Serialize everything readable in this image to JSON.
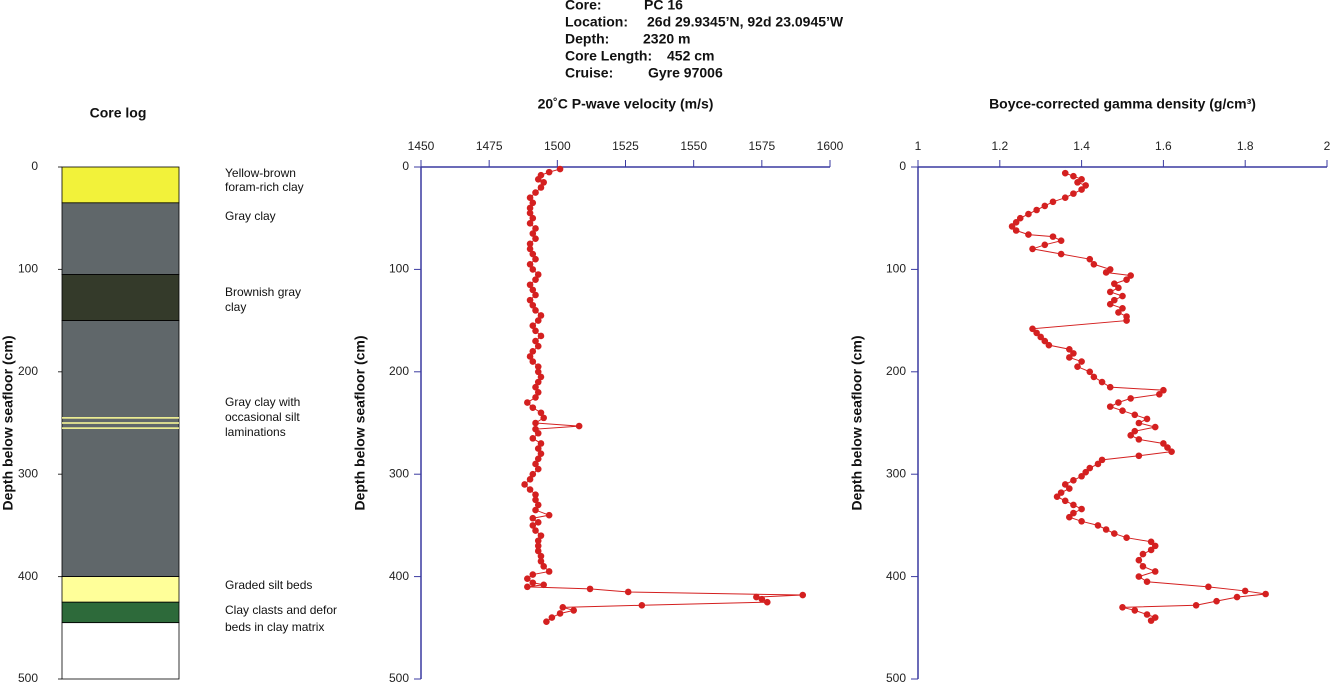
{
  "header": {
    "lines": [
      {
        "label": "Core:",
        "value": "PC 16"
      },
      {
        "label": "Location:",
        "value": "26d 29.9345’N, 92d 23.0945’W"
      },
      {
        "label": "Depth:",
        "value": "2320 m"
      },
      {
        "label": "Core Length:",
        "value": "452 cm"
      },
      {
        "label": "Cruise:",
        "value": "Gyre 97006"
      }
    ]
  },
  "chart_data": [
    {
      "type": "core_log",
      "title": "Core log",
      "ylabel": "Depth below seafloor (cm)",
      "ylim": [
        0,
        500
      ],
      "yticks": [
        0,
        100,
        200,
        300,
        400,
        500
      ],
      "layers": [
        {
          "top": 0,
          "bottom": 35,
          "color": "#f2f23a",
          "label": [
            "Yellow-brown",
            "foram-rich clay"
          ]
        },
        {
          "top": 35,
          "bottom": 105,
          "color": "#60676a",
          "label": [
            "Gray clay"
          ]
        },
        {
          "top": 105,
          "bottom": 150,
          "color": "#343a2a",
          "label": [
            "Brownish gray",
            "clay"
          ]
        },
        {
          "top": 150,
          "bottom": 400,
          "color": "#60676a",
          "label": [
            "Gray clay with",
            "occasional silt",
            "laminations"
          ]
        },
        {
          "top": 400,
          "bottom": 425,
          "color": "#ffff99",
          "label": [
            "Graded  silt beds"
          ]
        },
        {
          "top": 425,
          "bottom": 445,
          "color": "#2d6a3a",
          "label": [
            "Clay clasts and defor",
            "beds in clay matrix"
          ]
        },
        {
          "top": 445,
          "bottom": 500,
          "color": "#ffffff"
        }
      ],
      "laminae": [
        245,
        250,
        255
      ],
      "lamina_color": "#ffff99"
    },
    {
      "type": "line",
      "title": "20˚C P-wave velocity (m/s)",
      "ylabel": "Depth below seafloor (cm)",
      "color": "#d42020",
      "xlim": [
        1450,
        1600
      ],
      "xticks": [
        1450,
        1475,
        1500,
        1525,
        1550,
        1575,
        1600
      ],
      "ylim": [
        0,
        500
      ],
      "yticks": [
        0,
        100,
        200,
        300,
        400,
        500
      ],
      "depth": [
        2,
        5,
        8,
        12,
        15,
        20,
        25,
        30,
        35,
        40,
        45,
        50,
        55,
        60,
        65,
        70,
        75,
        80,
        85,
        90,
        95,
        100,
        105,
        110,
        115,
        120,
        125,
        130,
        135,
        140,
        145,
        150,
        155,
        160,
        165,
        170,
        175,
        180,
        185,
        190,
        195,
        200,
        205,
        210,
        215,
        220,
        225,
        230,
        235,
        240,
        245,
        250,
        253,
        256,
        260,
        265,
        270,
        275,
        280,
        285,
        290,
        295,
        300,
        305,
        310,
        315,
        320,
        325,
        330,
        335,
        340,
        343,
        347,
        350,
        355,
        360,
        365,
        370,
        375,
        380,
        385,
        390,
        395,
        398,
        402,
        406,
        408,
        410,
        412,
        415,
        418,
        420,
        422,
        425,
        428,
        430,
        433,
        436,
        440,
        444
      ],
      "values": [
        1501,
        1497,
        1494,
        1493,
        1495,
        1494,
        1492,
        1490,
        1491,
        1490,
        1490,
        1491,
        1490,
        1492,
        1491,
        1492,
        1490,
        1490,
        1491,
        1492,
        1490,
        1491,
        1493,
        1492,
        1490,
        1491,
        1492,
        1490,
        1491,
        1492,
        1494,
        1493,
        1491,
        1492,
        1494,
        1492,
        1493,
        1491,
        1490,
        1491,
        1493,
        1493,
        1494,
        1493,
        1492,
        1493,
        1492,
        1489,
        1491,
        1494,
        1495,
        1492,
        1508,
        1492,
        1493,
        1491,
        1494,
        1493,
        1494,
        1493,
        1492,
        1493,
        1491,
        1490,
        1488,
        1490,
        1492,
        1492,
        1493,
        1492,
        1497,
        1491,
        1493,
        1491,
        1492,
        1494,
        1493,
        1493,
        1493,
        1494,
        1494,
        1495,
        1497,
        1491,
        1489,
        1491,
        1495,
        1489,
        1512,
        1526,
        1590,
        1573,
        1575,
        1577,
        1531,
        1502,
        1506,
        1501,
        1498,
        1496
      ]
    },
    {
      "type": "line",
      "title": "Boyce-corrected gamma density (g/cm³)",
      "ylabel": "Depth below seafloor (cm)",
      "color": "#d42020",
      "xlim": [
        1,
        2
      ],
      "xticks": [
        1,
        1.2,
        1.4,
        1.6,
        1.8,
        2
      ],
      "ylim": [
        0,
        500
      ],
      "yticks": [
        0,
        100,
        200,
        300,
        400,
        500
      ],
      "depth": [
        6,
        9,
        12,
        15,
        18,
        22,
        26,
        30,
        34,
        38,
        42,
        46,
        50,
        54,
        58,
        62,
        66,
        68,
        72,
        76,
        80,
        85,
        90,
        95,
        100,
        103,
        106,
        110,
        114,
        118,
        122,
        126,
        130,
        134,
        138,
        142,
        146,
        150,
        158,
        162,
        166,
        170,
        174,
        178,
        182,
        186,
        190,
        195,
        200,
        205,
        210,
        215,
        218,
        222,
        226,
        230,
        234,
        238,
        242,
        246,
        250,
        254,
        258,
        262,
        266,
        270,
        274,
        278,
        282,
        286,
        290,
        294,
        298,
        302,
        306,
        310,
        314,
        318,
        322,
        326,
        330,
        334,
        338,
        342,
        346,
        350,
        354,
        358,
        362,
        366,
        370,
        374,
        378,
        384,
        390,
        395,
        400,
        405,
        410,
        414,
        417,
        420,
        424,
        428,
        430,
        433,
        437,
        440,
        443
      ],
      "values": [
        1.36,
        1.38,
        1.4,
        1.39,
        1.41,
        1.4,
        1.38,
        1.36,
        1.33,
        1.31,
        1.29,
        1.27,
        1.25,
        1.24,
        1.23,
        1.24,
        1.27,
        1.33,
        1.35,
        1.31,
        1.28,
        1.35,
        1.42,
        1.43,
        1.47,
        1.46,
        1.52,
        1.51,
        1.48,
        1.49,
        1.47,
        1.5,
        1.48,
        1.47,
        1.5,
        1.49,
        1.51,
        1.51,
        1.28,
        1.29,
        1.3,
        1.31,
        1.32,
        1.37,
        1.38,
        1.37,
        1.4,
        1.39,
        1.42,
        1.43,
        1.45,
        1.47,
        1.6,
        1.59,
        1.52,
        1.49,
        1.47,
        1.5,
        1.53,
        1.56,
        1.54,
        1.58,
        1.53,
        1.52,
        1.54,
        1.6,
        1.61,
        1.62,
        1.54,
        1.45,
        1.44,
        1.42,
        1.41,
        1.4,
        1.38,
        1.36,
        1.37,
        1.35,
        1.34,
        1.36,
        1.38,
        1.4,
        1.38,
        1.37,
        1.4,
        1.44,
        1.46,
        1.48,
        1.51,
        1.57,
        1.58,
        1.57,
        1.55,
        1.54,
        1.55,
        1.58,
        1.54,
        1.56,
        1.71,
        1.8,
        1.85,
        1.78,
        1.73,
        1.68,
        1.5,
        1.53,
        1.56,
        1.58,
        1.57
      ]
    }
  ]
}
